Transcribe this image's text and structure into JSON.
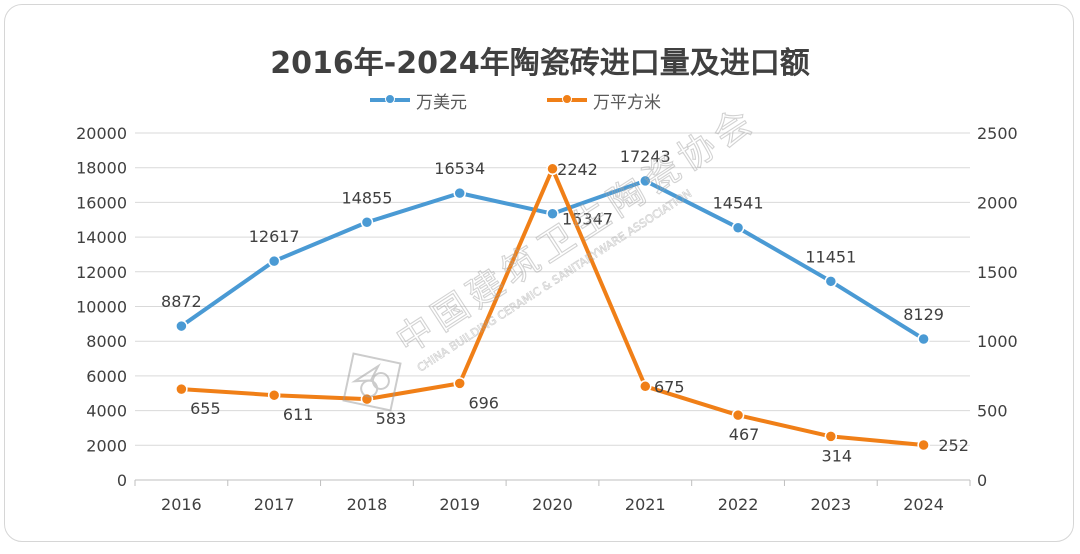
{
  "chart_data": {
    "type": "line",
    "title": "2016年-2024年陶瓷砖进口量及进口额",
    "categories": [
      "2016",
      "2017",
      "2018",
      "2019",
      "2020",
      "2021",
      "2022",
      "2023",
      "2024"
    ],
    "series": [
      {
        "name": "万美元",
        "axis": "left",
        "color": "#4a9ad4",
        "values": [
          8872,
          12617,
          14855,
          16534,
          15347,
          17243,
          14541,
          11451,
          8129
        ]
      },
      {
        "name": "万平方米",
        "axis": "right",
        "color": "#f07f17",
        "values": [
          655,
          611,
          583,
          696,
          2242,
          675,
          467,
          314,
          252
        ]
      }
    ],
    "y_left": {
      "ylim": [
        0,
        20000
      ],
      "ticks": [
        "0",
        "2000",
        "4000",
        "6000",
        "8000",
        "10000",
        "12000",
        "14000",
        "16000",
        "18000",
        "20000"
      ]
    },
    "y_right": {
      "ylim": [
        0,
        2500
      ],
      "ticks": [
        "0",
        "500",
        "1000",
        "1500",
        "2000",
        "2500"
      ]
    },
    "grid": "horizontal",
    "legend_position": "top-center",
    "data_labels": true
  },
  "watermark": {
    "name_cn": "中国建筑卫生陶瓷协会",
    "name_en": "CHINA BUILDING CERAMIC & SANITARYWARE ASSOCIATION"
  }
}
